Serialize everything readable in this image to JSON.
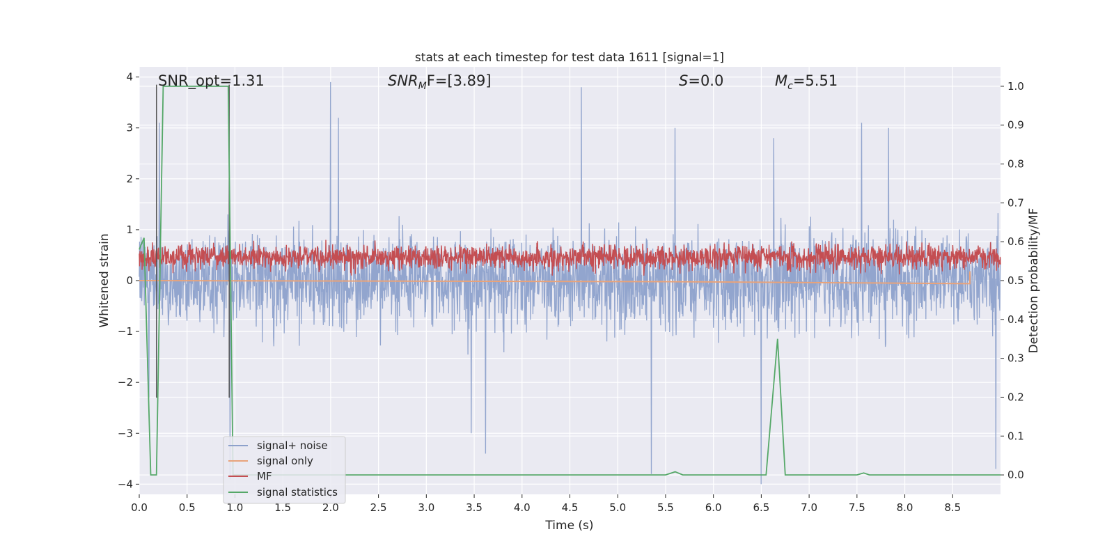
{
  "chart_data": {
    "type": "line",
    "title": "stats at each timestep for test data 1611 [signal=1]",
    "xlabel": "Time (s)",
    "ylabel": "Whitened strain",
    "ylabel_right": "Detection probability/MF",
    "xlim": [
      0.0,
      9.0
    ],
    "ylim": [
      -4.2,
      4.2
    ],
    "ylim_right": [
      -0.05,
      1.05
    ],
    "x_ticks": [
      "0.0",
      "0.5",
      "1.0",
      "1.5",
      "2.0",
      "2.5",
      "3.0",
      "3.5",
      "4.0",
      "4.5",
      "5.0",
      "5.5",
      "6.0",
      "6.5",
      "7.0",
      "7.5",
      "8.0",
      "8.5"
    ],
    "y_ticks": [
      "4",
      "3",
      "2",
      "1",
      "0",
      "−1",
      "−2",
      "−3",
      "−4"
    ],
    "y_ticks_right": [
      "1.0",
      "0.9",
      "0.8",
      "0.7",
      "0.6",
      "0.5",
      "0.4",
      "0.3",
      "0.2",
      "0.1",
      "0.0"
    ],
    "grid": true,
    "legend_position": "lower-left",
    "annotations": {
      "snr_opt": "SNR_opt=1.31",
      "snr_mf_label": "SNR",
      "snr_mf_sub": "M",
      "snr_mf_rest": "F=[3.89]",
      "s_label": "S",
      "s_value": "=0.0",
      "mc_label": "M",
      "mc_sub": "c",
      "mc_value": "=5.51"
    },
    "vertical_lines_x": [
      0.18,
      0.94
    ],
    "series": [
      {
        "name": "signal+ noise",
        "color": "#8da1cb",
        "description_of_shape": "dense noise around 0, typical envelope ~±1.5, peaks to ~±3.9",
        "envelope": 1.5,
        "peaks": [
          [
            0.1,
            -2.3
          ],
          [
            0.21,
            3.1
          ],
          [
            0.95,
            -3.9
          ],
          [
            2.0,
            3.9
          ],
          [
            2.08,
            3.2
          ],
          [
            3.47,
            -3.0
          ],
          [
            3.62,
            -3.4
          ],
          [
            4.62,
            3.8
          ],
          [
            5.35,
            -3.8
          ],
          [
            5.6,
            3.0
          ],
          [
            6.5,
            -4.0
          ],
          [
            6.63,
            2.8
          ],
          [
            7.55,
            3.1
          ],
          [
            7.83,
            3.0
          ],
          [
            8.95,
            -3.7
          ]
        ]
      },
      {
        "name": "signal only",
        "color": "#e8a37b",
        "points": [
          [
            0.0,
            0.0
          ],
          [
            5.5,
            -0.02
          ],
          [
            8.0,
            -0.05
          ],
          [
            8.68,
            -0.06
          ],
          [
            8.68,
            0.18
          ]
        ]
      },
      {
        "name": "MF",
        "color": "#c44e52",
        "description_of_shape": "noisy band on right axis between ~0.52 and ~0.62",
        "center": 0.56,
        "amplitude": 0.04
      },
      {
        "name": "signal statistics",
        "color": "#55a868",
        "points": [
          [
            0.0,
            0.58
          ],
          [
            0.05,
            0.61
          ],
          [
            0.12,
            0.0
          ],
          [
            0.18,
            0.0
          ],
          [
            0.25,
            1.0
          ],
          [
            0.93,
            1.0
          ],
          [
            0.98,
            0.0
          ],
          [
            5.5,
            0.0
          ],
          [
            5.6,
            0.008
          ],
          [
            5.68,
            0.0
          ],
          [
            6.55,
            0.0
          ],
          [
            6.67,
            0.35
          ],
          [
            6.75,
            0.0
          ],
          [
            7.5,
            0.0
          ],
          [
            7.57,
            0.005
          ],
          [
            7.63,
            0.0
          ],
          [
            9.0,
            0.0
          ]
        ]
      }
    ]
  }
}
